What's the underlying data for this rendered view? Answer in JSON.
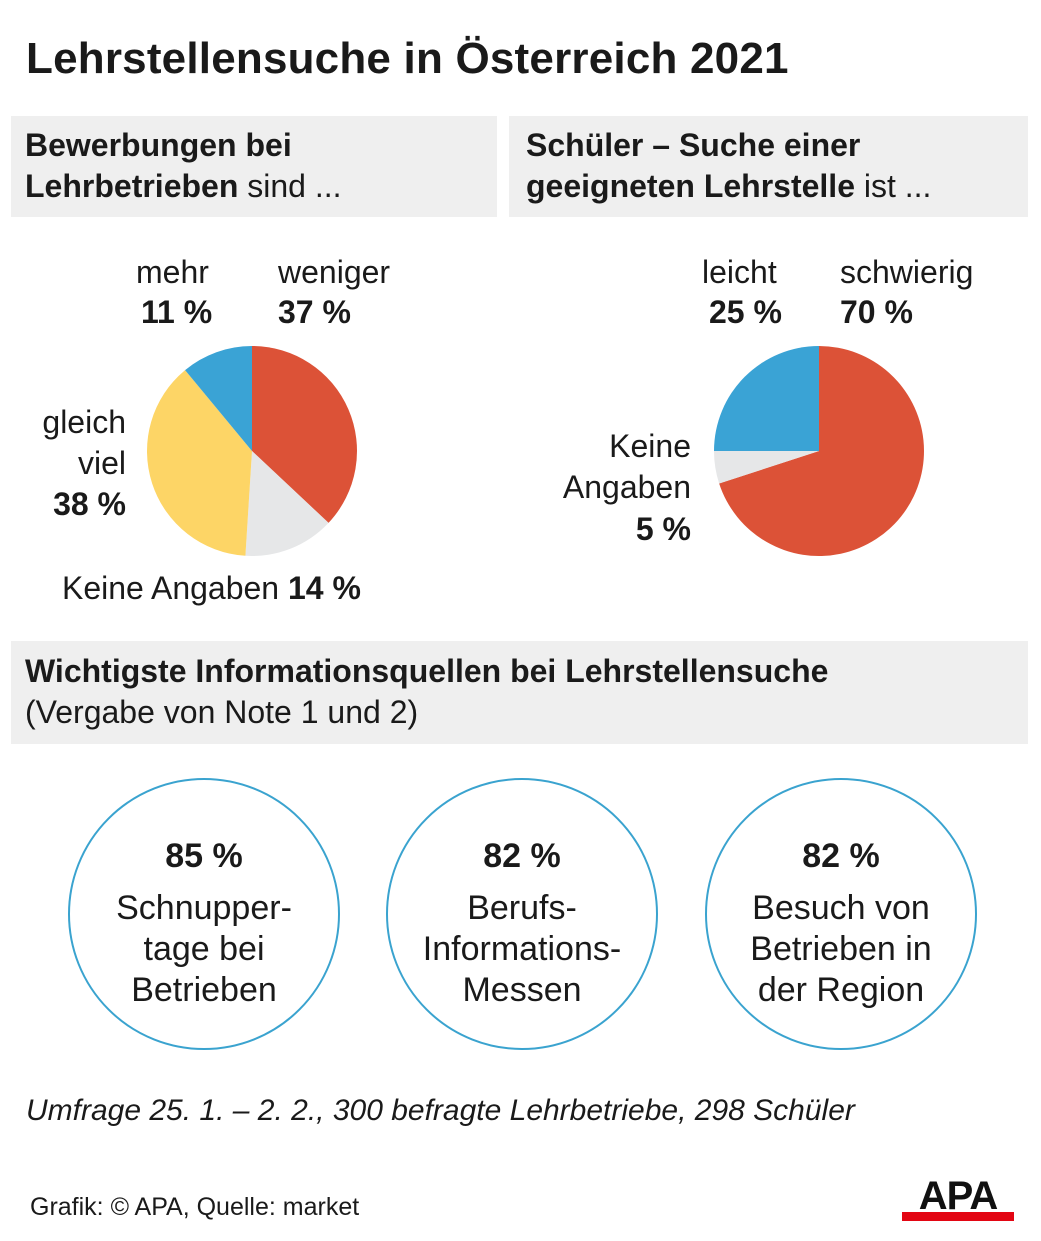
{
  "title": "Lehrstellensuche in Österreich 2021",
  "chart_data": [
    {
      "type": "pie",
      "title_bold": "Bewerbungen bei Lehrbetrieben",
      "title_rest": " sind ...",
      "slices": [
        {
          "label": "weniger",
          "value": 37,
          "pct_text": "37 %",
          "color": "#dc5237"
        },
        {
          "label": "Keine Angaben",
          "value": 14,
          "pct_text": "14 %",
          "color": "#e6e7e8"
        },
        {
          "label": "gleich viel",
          "value": 38,
          "pct_text": "38 %",
          "color": "#fdd566"
        },
        {
          "label": "mehr",
          "value": 11,
          "pct_text": "11 %",
          "color": "#3aa3d5"
        }
      ],
      "label_lines": {
        "gleich": "gleich",
        "viel": "viel"
      }
    },
    {
      "type": "pie",
      "title_bold": "Schüler – Suche einer geeigneten Lehrstelle",
      "title_rest": " ist ...",
      "slices": [
        {
          "label": "schwierig",
          "value": 70,
          "pct_text": "70 %",
          "color": "#dc5237"
        },
        {
          "label": "Keine Angaben",
          "value": 5,
          "pct_text": "5 %",
          "color": "#e6e7e8"
        },
        {
          "label": "leicht",
          "value": 25,
          "pct_text": "25 %",
          "color": "#3aa3d5"
        }
      ],
      "label_lines": {
        "keine": "Keine",
        "angaben": "Angaben"
      }
    },
    {
      "type": "table",
      "title_bold": "Wichtigste Informationsquellen bei Lehrstellensuche",
      "subtitle": "(Vergabe von Note 1 und 2)",
      "items": [
        {
          "value": 85,
          "pct_text": "85 %",
          "lines": [
            "Schnupper-",
            "tage bei",
            "Betrieben"
          ]
        },
        {
          "value": 82,
          "pct_text": "82 %",
          "lines": [
            "Berufs-",
            "Informations-",
            "Messen"
          ]
        },
        {
          "value": 82,
          "pct_text": "82 %",
          "lines": [
            "Besuch von",
            "Betrieben in",
            "der Region"
          ]
        }
      ],
      "circle_color": "#3aa3cf"
    }
  ],
  "footnote": "Umfrage 25. 1. – 2. 2., 300 befragte Lehrbetriebe, 298 Schüler",
  "credit": "Grafik: © APA, Quelle: market",
  "logo_text": "APA",
  "logo_colors": {
    "text": "#111111",
    "bar": "#e30613"
  }
}
